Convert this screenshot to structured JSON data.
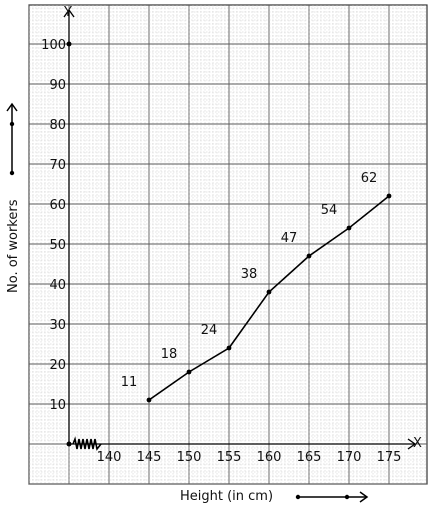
{
  "chart_data": {
    "type": "line",
    "x_axis_name": "X",
    "y_axis_name": "Y",
    "xlabel": "Height (in cm)",
    "ylabel": "No. of workers",
    "x_ticks": [
      "140",
      "145",
      "150",
      "155",
      "160",
      "165",
      "170",
      "175"
    ],
    "y_ticks": [
      "10",
      "20",
      "30",
      "40",
      "50",
      "60",
      "70",
      "80",
      "90",
      "100"
    ],
    "x": [
      145,
      150,
      155,
      160,
      165,
      170,
      175
    ],
    "y": [
      11,
      18,
      24,
      38,
      47,
      54,
      62
    ],
    "data_labels": [
      "11",
      "18",
      "24",
      "38",
      "47",
      "54",
      "62"
    ],
    "xlim": [
      135,
      177
    ],
    "ylim": [
      0,
      100
    ],
    "x_axis_break": true,
    "grid": true,
    "graph_paper": true,
    "colors": {
      "line": "#000000",
      "grid_minor": "#c8c8c8",
      "grid_major": "#5a5a5a"
    }
  }
}
